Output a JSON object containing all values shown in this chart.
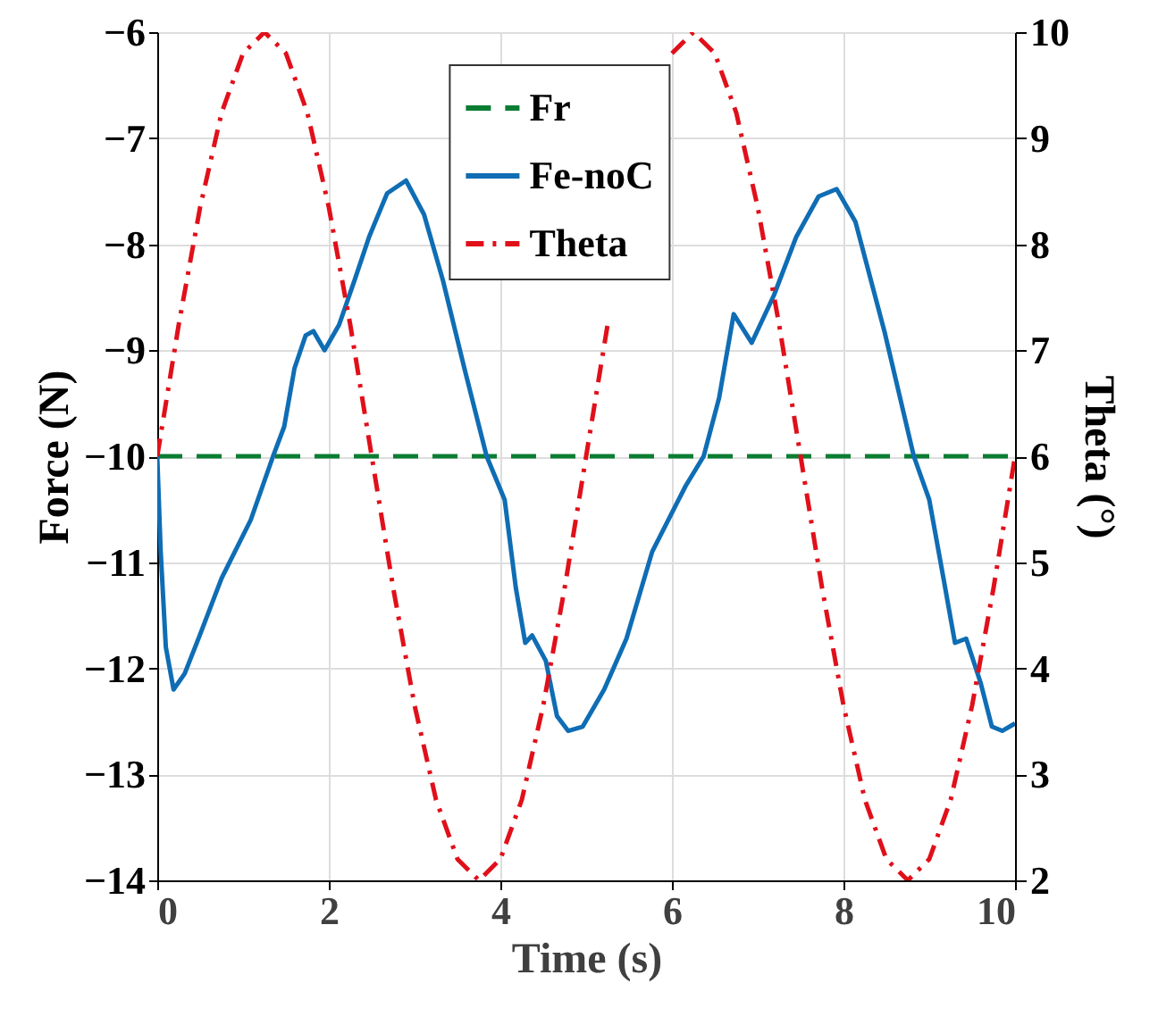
{
  "chart_data": {
    "type": "line",
    "xlabel": "Time (s)",
    "ylabel": "Force (N)",
    "y2label": "Theta (°)",
    "xlim": [
      0,
      10
    ],
    "xticks": [
      0,
      2,
      4,
      6,
      8,
      10
    ],
    "ylim": [
      -14,
      -6
    ],
    "yticks": [
      -14,
      -13,
      -12,
      -11,
      -10,
      -9,
      -8,
      -7,
      -6
    ],
    "y2lim": [
      2,
      10
    ],
    "y2ticks": [
      2,
      3,
      4,
      5,
      6,
      7,
      8,
      9,
      10
    ],
    "grid": true,
    "legend": "top",
    "marker": "none",
    "series": [
      {
        "name": "Fr",
        "color": "#0a7d32",
        "line_style": "dashed",
        "x": [
          0,
          10
        ],
        "values": [
          -10,
          -10
        ]
      },
      {
        "name": "Fe-noC",
        "color": "#0f6db4",
        "line_style": "solid",
        "x": [
          0,
          0.04,
          0.1,
          0.19,
          0.32,
          0.49,
          0.75,
          1.09,
          1.35,
          1.48,
          1.6,
          1.73,
          1.82,
          1.95,
          2.12,
          2.3,
          2.47,
          2.68,
          2.9,
          3.11,
          3.33,
          3.58,
          3.84,
          4.05,
          4.18,
          4.29,
          4.37,
          4.53,
          4.66,
          4.79,
          4.96,
          5.21,
          5.47,
          5.77,
          6.16,
          6.37,
          6.55,
          6.72,
          6.93,
          7.19,
          7.45,
          7.71,
          7.92,
          8.14,
          8.48,
          8.82,
          9.0,
          9.17,
          9.3,
          9.43,
          9.6,
          9.73,
          9.85,
          10
        ],
        "values": [
          -10,
          -10.9,
          -11.8,
          -12.2,
          -12.05,
          -11.7,
          -11.15,
          -10.6,
          -10.0,
          -9.72,
          -9.17,
          -8.86,
          -8.82,
          -9.0,
          -8.76,
          -8.34,
          -7.93,
          -7.52,
          -7.4,
          -7.72,
          -8.34,
          -9.17,
          -10.0,
          -10.41,
          -11.24,
          -11.76,
          -11.69,
          -11.93,
          -12.45,
          -12.59,
          -12.55,
          -12.2,
          -11.72,
          -10.9,
          -10.28,
          -10.0,
          -9.45,
          -8.66,
          -8.93,
          -8.48,
          -7.93,
          -7.55,
          -7.48,
          -7.79,
          -8.83,
          -10.0,
          -10.41,
          -11.17,
          -11.76,
          -11.72,
          -12.14,
          -12.55,
          -12.59,
          -12.52
        ]
      },
      {
        "name": "Theta",
        "color": "#e0101a",
        "line_style": "dashdot",
        "axis": "y2",
        "x": [
          0,
          0.25,
          0.5,
          0.75,
          1,
          1.25,
          1.5,
          1.75,
          2,
          2.25,
          2.5,
          2.75,
          3,
          3.25,
          3.5,
          3.75,
          4,
          4.25,
          4.5,
          4.75,
          5,
          5.25,
          5.5,
          5.75,
          6,
          6.25,
          6.5,
          6.75,
          7,
          7.25,
          7.5,
          7.75,
          8,
          8.25,
          8.5,
          8.75,
          9,
          9.25,
          9.5,
          9.75,
          10
        ],
        "values": [
          6,
          7.24,
          8.35,
          9.24,
          9.8,
          10,
          9.8,
          9.24,
          8.35,
          7.24,
          6,
          4.76,
          3.65,
          2.76,
          2.2,
          2,
          2.2,
          2.76,
          3.65,
          4.76,
          6,
          7.24,
          null,
          null,
          9.8,
          10,
          9.8,
          9.24,
          8.35,
          7.24,
          6,
          4.76,
          3.65,
          2.76,
          2.2,
          2,
          2.2,
          2.76,
          3.65,
          4.76,
          6
        ]
      }
    ]
  }
}
